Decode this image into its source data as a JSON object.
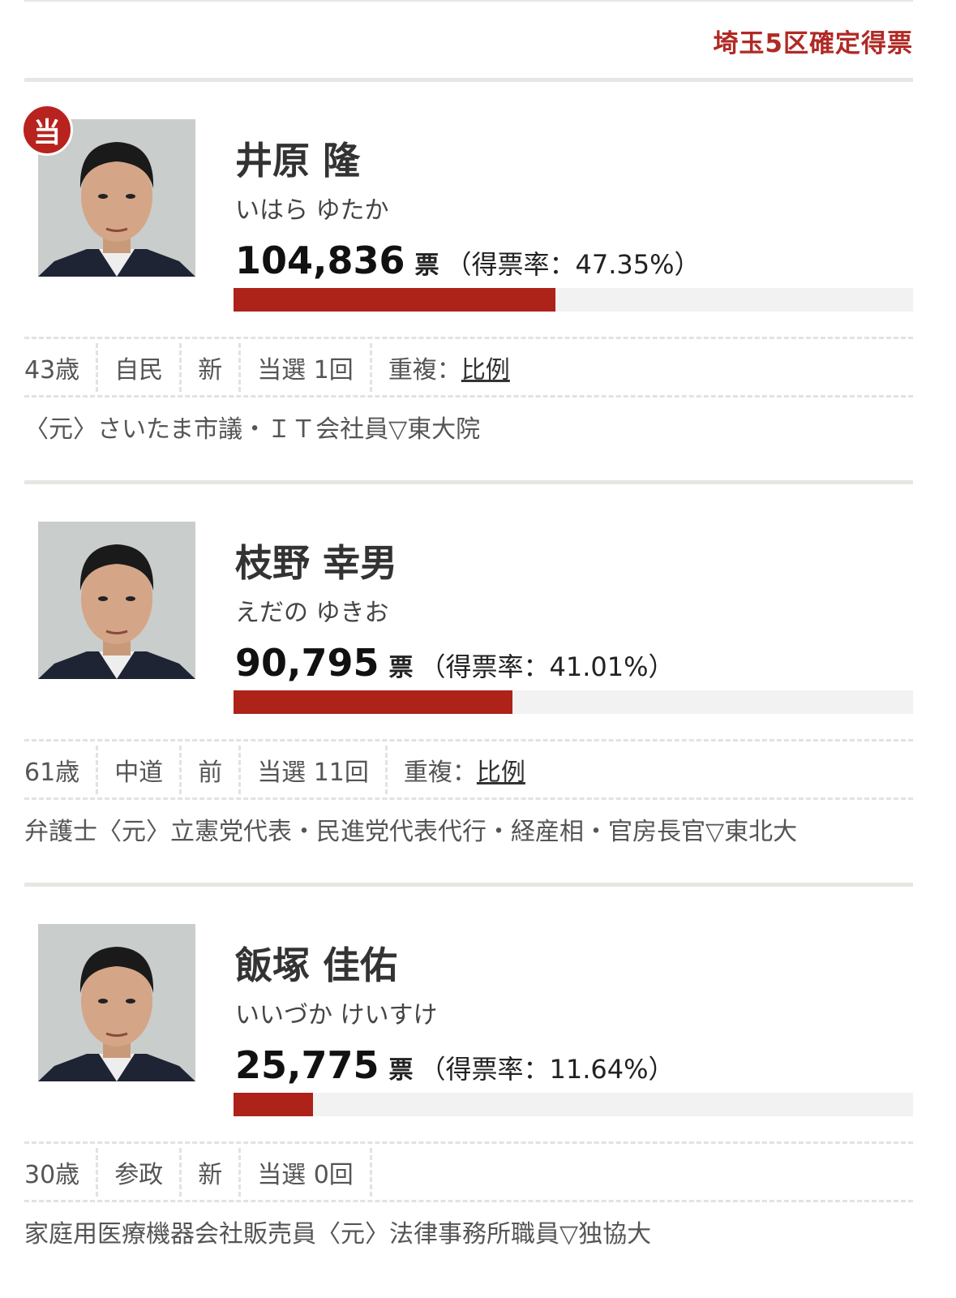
{
  "header": {
    "title": "埼玉5区確定得票"
  },
  "colors": {
    "accent": "#b02a25",
    "bar_fill": "#ad2219",
    "bar_track": "#f2f2f2"
  },
  "candidates": [
    {
      "name": "井原 隆",
      "kana": "いはら ゆたか",
      "votes": "104,836",
      "unit": "票",
      "rate": "（得票率：47.35%）",
      "share": 47.35,
      "elected": true,
      "badge": "当",
      "age": "43歳",
      "party": "自民",
      "status": "新",
      "wins": "当選 1回",
      "dup_label": "重複：",
      "dup_link": "比例",
      "bio": "〈元〉さいたま市議・ＩＴ会社員▽東大院"
    },
    {
      "name": "枝野 幸男",
      "kana": "えだの ゆきお",
      "votes": "90,795",
      "unit": "票",
      "rate": "（得票率：41.01%）",
      "share": 41.01,
      "elected": false,
      "age": "61歳",
      "party": "中道",
      "status": "前",
      "wins": "当選 11回",
      "dup_label": "重複：",
      "dup_link": "比例",
      "bio": "弁護士〈元〉立憲党代表・民進党代表代行・経産相・官房長官▽東北大"
    },
    {
      "name": "飯塚 佳佑",
      "kana": "いいづか けいすけ",
      "votes": "25,775",
      "unit": "票",
      "rate": "（得票率：11.64%）",
      "share": 11.64,
      "elected": false,
      "age": "30歳",
      "party": "参政",
      "status": "新",
      "wins": "当選 0回",
      "bio": "家庭用医療機器会社販売員〈元〉法律事務所職員▽独協大"
    }
  ]
}
